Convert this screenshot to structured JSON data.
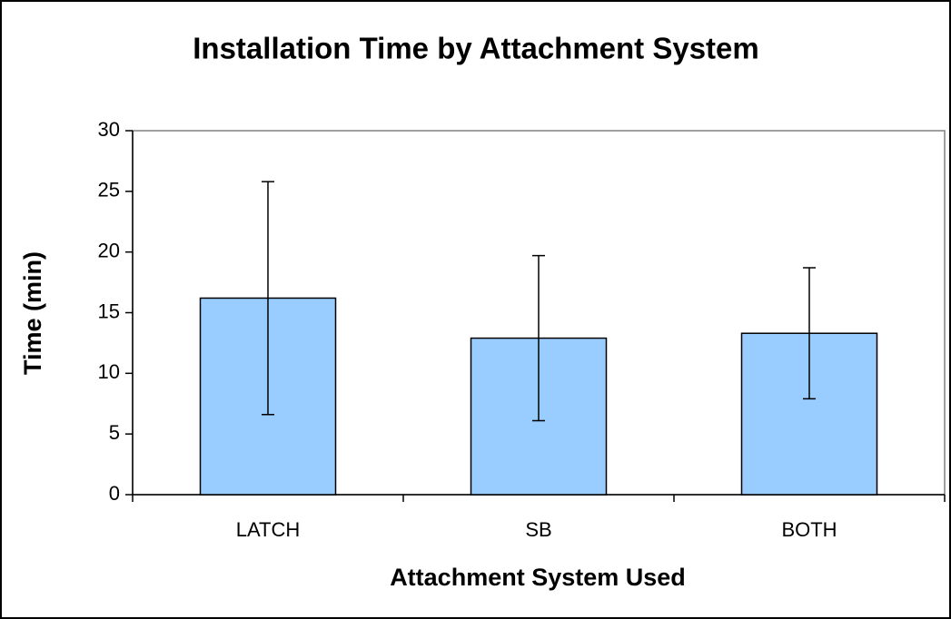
{
  "chart_data": {
    "type": "bar",
    "title": "Installation Time by Attachment System",
    "x_label": "Attachment System Used",
    "y_label": "Time (min)",
    "categories": [
      "LATCH",
      "SB",
      "BOTH"
    ],
    "values": [
      16.2,
      12.9,
      13.3
    ],
    "errors": [
      9.6,
      6.8,
      5.4
    ],
    "color": "#99ccff",
    "ylim": [
      0,
      30
    ],
    "yticks": [
      0,
      5,
      10,
      15,
      20,
      25,
      30
    ],
    "grid": false
  }
}
